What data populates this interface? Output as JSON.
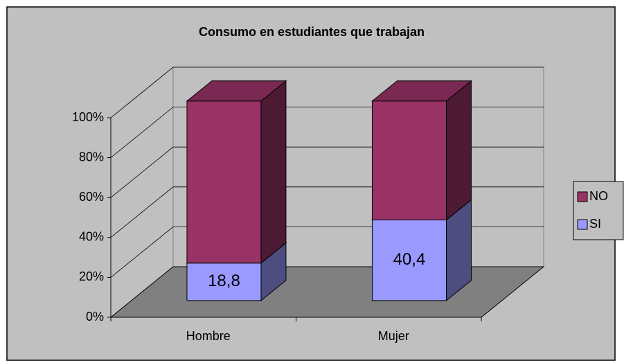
{
  "chart_data": {
    "type": "bar3d_stacked_percent",
    "title": "Consumo en estudiantes que trabajan",
    "categories": [
      "Hombre",
      "Mujer"
    ],
    "series": [
      {
        "name": "SI",
        "color": "#9999ff",
        "values": [
          18.8,
          40.4
        ],
        "value_labels": [
          "18,8",
          "40,4"
        ]
      },
      {
        "name": "NO",
        "color": "#993366",
        "values": [
          81.2,
          59.6
        ]
      }
    ],
    "ylim": [
      0,
      100
    ],
    "yticks": [
      {
        "value": 0,
        "label": "0%"
      },
      {
        "value": 20,
        "label": "20%"
      },
      {
        "value": 40,
        "label": "40%"
      },
      {
        "value": 60,
        "label": "60%"
      },
      {
        "value": 80,
        "label": "80%"
      },
      {
        "value": 100,
        "label": "100%"
      }
    ],
    "grid": true,
    "legend": "right"
  }
}
